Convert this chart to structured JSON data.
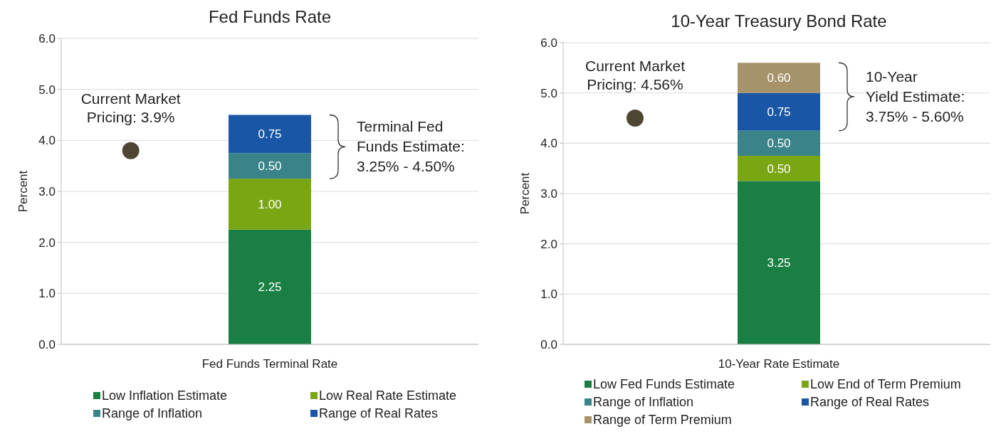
{
  "chart_data": [
    {
      "type": "bar",
      "title": "Fed Funds Rate",
      "ylabel": "Percent",
      "stacked": true,
      "categories": [
        null,
        "Fed Funds Terminal Rate",
        null
      ],
      "ylim": [
        0,
        6
      ],
      "yticks": [
        {
          "value": 0,
          "label": "0.0"
        },
        {
          "value": 1,
          "label": "1.0"
        },
        {
          "value": 2,
          "label": "2.0"
        },
        {
          "value": 3,
          "label": "3.0"
        },
        {
          "value": 4,
          "label": "4.0"
        },
        {
          "value": 5,
          "label": "5.0"
        },
        {
          "value": 6,
          "label": "6.0"
        }
      ],
      "grid": "y",
      "legend": "bottom",
      "data_labels": true,
      "series": [
        {
          "name": "Low Inflation Estimate",
          "color": "#1a7f42",
          "values": [
            null,
            2.25,
            null
          ]
        },
        {
          "name": "Low Real Rate Estimate",
          "color": "#7aa614",
          "values": [
            null,
            1.0,
            null
          ],
          "value_labels": [
            null,
            "1.00",
            null
          ]
        },
        {
          "name": "Range of Inflation",
          "color": "#3a8489",
          "values": [
            null,
            0.5,
            null
          ],
          "value_labels": [
            null,
            "0.50",
            null
          ]
        },
        {
          "name": "Range of Real Rates",
          "color": "#1957a6",
          "values": [
            null,
            0.75,
            null
          ]
        },
        {
          "type": "scatter",
          "color": "#4d4632",
          "values": [
            3.8,
            null,
            null
          ],
          "value_labels": [
            null,
            null,
            null
          ]
        }
      ],
      "annotations": [
        "Current Market Pricing: 3.9%",
        "Terminal Fed Funds Estimate: 3.25% - 4.50%"
      ]
    },
    {
      "type": "bar",
      "title": "10-Year Treasury Bond Rate",
      "ylabel": "Percent",
      "stacked": true,
      "categories": [
        null,
        "10-Year Rate Estimate",
        null
      ],
      "ylim": [
        0,
        6
      ],
      "yticks": [
        {
          "value": 0,
          "label": "0.0"
        },
        {
          "value": 1,
          "label": "1.0"
        },
        {
          "value": 2,
          "label": "2.0"
        },
        {
          "value": 3,
          "label": "3.0"
        },
        {
          "value": 4,
          "label": "4.0"
        },
        {
          "value": 5,
          "label": "5.0"
        },
        {
          "value": 6,
          "label": "6.0"
        }
      ],
      "grid": "y",
      "legend": "bottom",
      "data_labels": true,
      "series": [
        {
          "name": "Low Fed Funds Estimate",
          "color": "#1a7f42",
          "values": [
            null,
            3.25,
            null
          ]
        },
        {
          "name": "Low End of Term Premium",
          "color": "#7aa614",
          "values": [
            null,
            0.5,
            null
          ],
          "value_labels": [
            null,
            "0.50",
            null
          ]
        },
        {
          "name": "Range of Inflation",
          "color": "#3a8489",
          "values": [
            null,
            0.5,
            null
          ],
          "value_labels": [
            null,
            "0.50",
            null
          ]
        },
        {
          "name": "Range of Real Rates",
          "color": "#1957a6",
          "values": [
            null,
            0.75,
            null
          ]
        },
        {
          "name": "Range of Term Premium",
          "color": "#a6936a",
          "values": [
            null,
            0.6,
            null
          ],
          "value_labels": [
            null,
            "0.60",
            null
          ]
        },
        {
          "type": "scatter",
          "color": "#4d4632",
          "values": [
            4.5,
            null,
            null
          ],
          "value_labels": [
            null,
            null,
            null
          ]
        }
      ],
      "annotations": [
        "Current Market Pricing: 4.56%",
        "10-Year Yield Estimate: 3.75% - 5.60%"
      ]
    }
  ]
}
